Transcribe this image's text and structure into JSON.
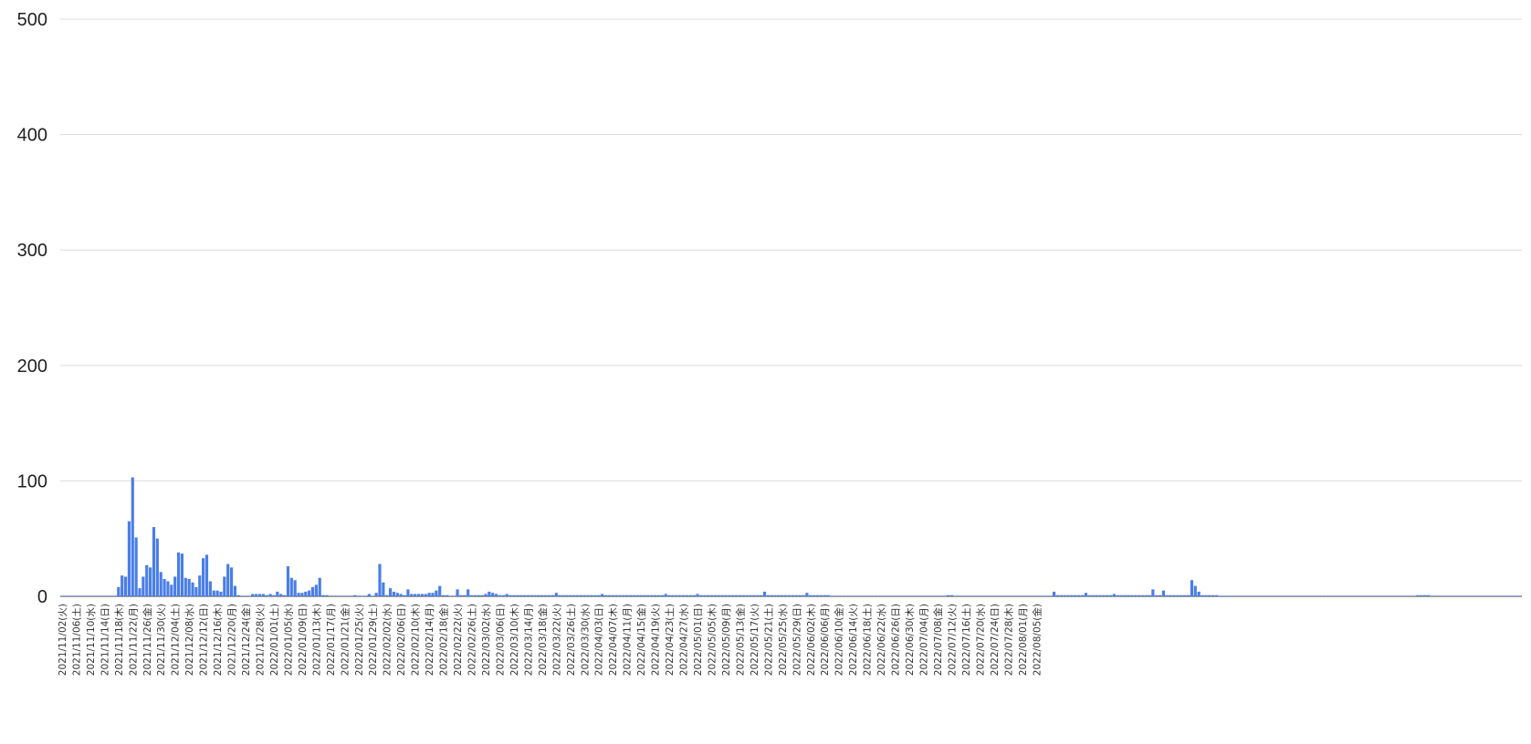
{
  "chart_data": {
    "type": "bar",
    "title": "",
    "xlabel": "",
    "ylabel": "",
    "ylim": [
      0,
      500
    ],
    "y_ticks": [
      "0",
      "100",
      "200",
      "300",
      "400",
      "500"
    ],
    "grid": true,
    "legend": "none",
    "colors": {
      "bar": "#4a7ee8",
      "grid": "#dcdcdc",
      "axis_text": "#222222"
    },
    "x_tick_labels": [
      "2021/11/02(火)",
      "2021/11/06(土)",
      "2021/11/10(水)",
      "2021/11/14(日)",
      "2021/11/18(木)",
      "2021/11/22(月)",
      "2021/11/26(金)",
      "2021/11/30(火)",
      "2021/12/04(土)",
      "2021/12/08(水)",
      "2021/12/12(日)",
      "2021/12/16(木)",
      "2021/12/20(月)",
      "2021/12/24(金)",
      "2021/12/28(火)",
      "2022/01/01(土)",
      "2022/01/05(水)",
      "2022/01/09(日)",
      "2022/01/13(木)",
      "2022/01/17(月)",
      "2022/01/21(金)",
      "2022/01/25(火)",
      "2022/01/29(土)",
      "2022/02/02(水)",
      "2022/02/06(日)",
      "2022/02/10(木)",
      "2022/02/14(月)",
      "2022/02/18(金)",
      "2022/02/22(火)",
      "2022/02/26(土)",
      "2022/03/02(水)",
      "2022/03/06(日)",
      "2022/03/10(木)",
      "2022/03/14(月)",
      "2022/03/18(金)",
      "2022/03/22(火)",
      "2022/03/26(土)",
      "2022/03/30(水)",
      "2022/04/03(日)",
      "2022/04/07(木)",
      "2022/04/11(月)",
      "2022/04/15(金)",
      "2022/04/19(火)",
      "2022/04/23(土)",
      "2022/04/27(水)",
      "2022/05/01(日)",
      "2022/05/05(木)",
      "2022/05/09(月)",
      "2022/05/13(金)",
      "2022/05/17(火)",
      "2022/05/21(土)",
      "2022/05/25(水)",
      "2022/05/29(日)",
      "2022/06/02(木)",
      "2022/06/06(月)",
      "2022/06/10(金)",
      "2022/06/14(火)",
      "2022/06/18(土)",
      "2022/06/22(水)",
      "2022/06/26(日)",
      "2022/06/30(木)",
      "2022/07/04(月)",
      "2022/07/08(金)",
      "2022/07/12(火)",
      "2022/07/16(土)",
      "2022/07/20(水)",
      "2022/07/24(日)",
      "2022/07/28(木)",
      "2022/08/01(月)",
      "2022/08/05(金)"
    ],
    "values": [
      0,
      0,
      0,
      0,
      0,
      0,
      0,
      0,
      0,
      0,
      0,
      0,
      0,
      0,
      0,
      0,
      8,
      18,
      17,
      65,
      103,
      51,
      7,
      17,
      27,
      25,
      60,
      50,
      21,
      15,
      13,
      10,
      17,
      38,
      37,
      16,
      15,
      12,
      8,
      18,
      33,
      36,
      13,
      5,
      5,
      4,
      17,
      28,
      25,
      9,
      1,
      0,
      0,
      0,
      2,
      2,
      2,
      2,
      1,
      2,
      1,
      4,
      2,
      1,
      26,
      16,
      14,
      3,
      3,
      4,
      5,
      8,
      10,
      16,
      1,
      1,
      0,
      0,
      0,
      0,
      0,
      0,
      0,
      1,
      0,
      0,
      0,
      2,
      0,
      3,
      28,
      12,
      1,
      7,
      4,
      3,
      2,
      1,
      6,
      2,
      2,
      2,
      2,
      2,
      3,
      3,
      5,
      9,
      1,
      1,
      0,
      0,
      6,
      1,
      1,
      6,
      1,
      1,
      1,
      1,
      2,
      4,
      3,
      2,
      1,
      1,
      2,
      1,
      1,
      1,
      1,
      1,
      1,
      1,
      1,
      1,
      1,
      1,
      1,
      1,
      3,
      1,
      1,
      1,
      1,
      1,
      1,
      1,
      1,
      1,
      1,
      1,
      1,
      2,
      1,
      1,
      1,
      1,
      1,
      1,
      1,
      1,
      1,
      1,
      1,
      1,
      1,
      1,
      1,
      1,
      1,
      2,
      1,
      1,
      1,
      1,
      1,
      1,
      1,
      1,
      2,
      1,
      1,
      1,
      1,
      1,
      1,
      1,
      1,
      1,
      1,
      1,
      1,
      1,
      1,
      1,
      1,
      1,
      1,
      4,
      1,
      1,
      1,
      1,
      1,
      1,
      1,
      1,
      1,
      1,
      1,
      3,
      1,
      1,
      1,
      1,
      1,
      1,
      0,
      0,
      0,
      0,
      0,
      0,
      0,
      0,
      0,
      0,
      0,
      0,
      0,
      0,
      0,
      0,
      0,
      0,
      0,
      0,
      0,
      0,
      0,
      0,
      0,
      0,
      0,
      0,
      0,
      0,
      0,
      0,
      0,
      1,
      1,
      0,
      0,
      0,
      0,
      0,
      0,
      0,
      0,
      0,
      0,
      0,
      0,
      0,
      0,
      0,
      0,
      0,
      0,
      0,
      0,
      0,
      0,
      0,
      0,
      0,
      0,
      0,
      0,
      4,
      1,
      1,
      1,
      1,
      1,
      1,
      1,
      1,
      3,
      1,
      1,
      1,
      1,
      1,
      1,
      1,
      2,
      1,
      1,
      1,
      1,
      1,
      1,
      1,
      1,
      1,
      1,
      6,
      1,
      1,
      5,
      1,
      1,
      1,
      1,
      1,
      1,
      1,
      14,
      9,
      4,
      1,
      1,
      1,
      1,
      1,
      0,
      0,
      0,
      0,
      0,
      0,
      0,
      0,
      0,
      0,
      0,
      0,
      0,
      0,
      0,
      0,
      0,
      0,
      0,
      0,
      0,
      0,
      0,
      0,
      0,
      0,
      0,
      0,
      0,
      0,
      0,
      0,
      0,
      0,
      0,
      0,
      0,
      0,
      0,
      0,
      0,
      0,
      0,
      0,
      0,
      0,
      0,
      0,
      0,
      0,
      0,
      0,
      0,
      0,
      0,
      0,
      1,
      1,
      1,
      1,
      0,
      0,
      0,
      0,
      0,
      0,
      0,
      0,
      0,
      0,
      0,
      0,
      0,
      0,
      0,
      0,
      0,
      0,
      0,
      0,
      0,
      0,
      0,
      0,
      0,
      0
    ]
  }
}
